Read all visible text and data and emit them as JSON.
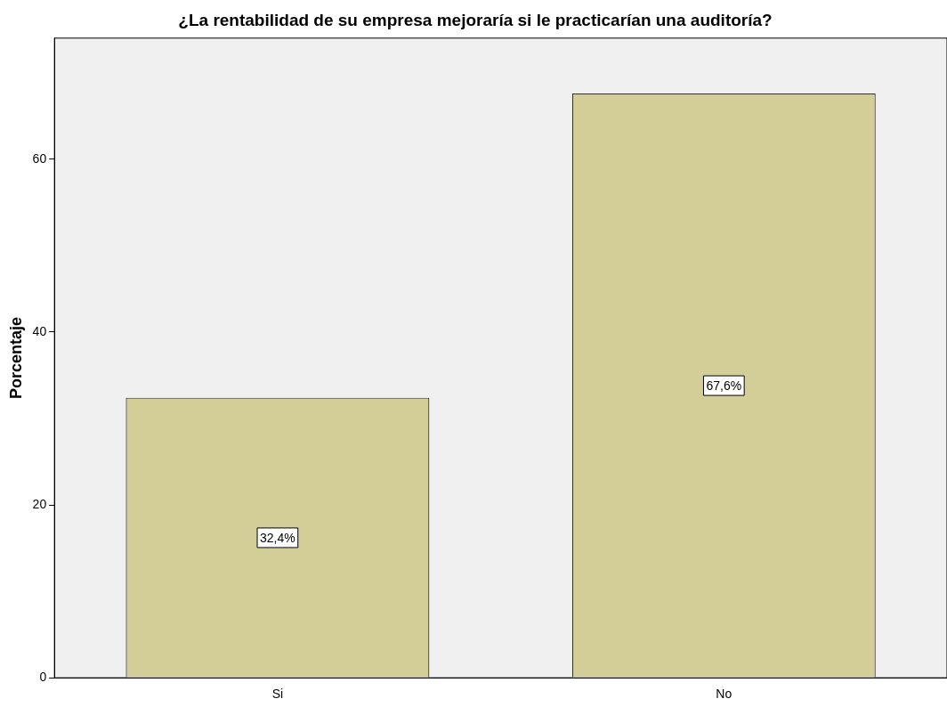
{
  "chart_data": {
    "type": "bar",
    "title": "¿La rentabilidad de su empresa mejoraría si le practicarían una auditoría?",
    "ylabel": "Porcentaje",
    "categories": [
      "Si",
      "No"
    ],
    "values": [
      32.4,
      67.6
    ],
    "value_labels": [
      "32,4%",
      "67,6%"
    ],
    "color": "#d3ce98",
    "ylim": [
      0,
      74
    ],
    "yticks": [
      0,
      20,
      40,
      60
    ]
  }
}
